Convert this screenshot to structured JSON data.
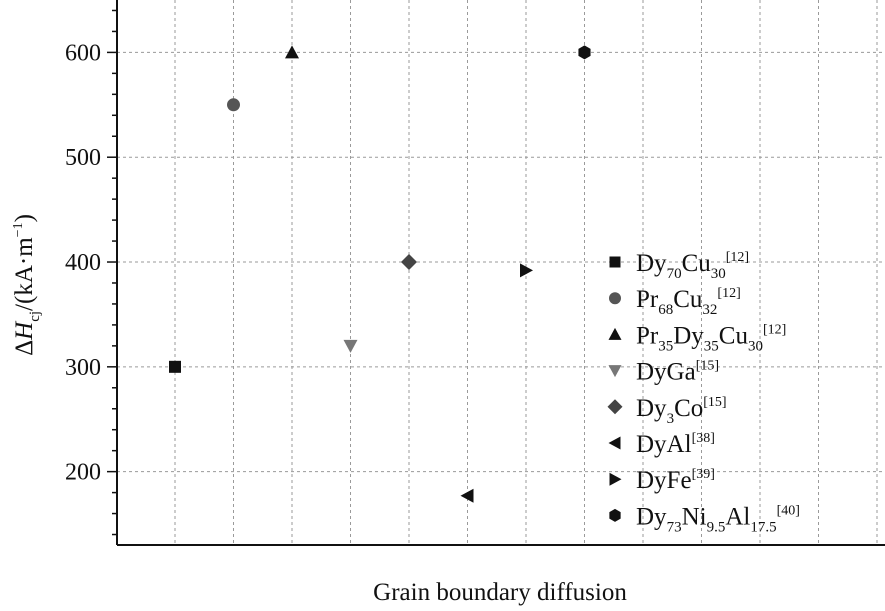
{
  "chart_data": {
    "type": "scatter",
    "title": "",
    "xlabel": "Grain boundary diffusion",
    "ylabel": {
      "prefix": "ΔH",
      "sub": "cj",
      "mid": "/(kA·m",
      "sup": "−1",
      "suffix": ")"
    },
    "ylim": [
      130,
      650
    ],
    "yticks": [
      {
        "value": 200,
        "label": "200"
      },
      {
        "value": 300,
        "label": "300"
      },
      {
        "value": 400,
        "label": "400"
      },
      {
        "value": 500,
        "label": "500"
      },
      {
        "value": 600,
        "label": "600"
      }
    ],
    "x_grid_count": 13,
    "grid": true,
    "legend_position": "right",
    "series": [
      {
        "name": "Dy70Cu30[12]",
        "label_parts": [
          {
            "t": "Dy"
          },
          {
            "t": "70",
            "sub": true
          },
          {
            "t": "Cu"
          },
          {
            "t": "30",
            "sub": true
          },
          {
            "t": "[12]",
            "sup": true
          }
        ],
        "marker": "square",
        "color": "#111111",
        "x": 1,
        "y": 300
      },
      {
        "name": "Pr68Cu32[12]",
        "label_parts": [
          {
            "t": "Pr"
          },
          {
            "t": "68",
            "sub": true
          },
          {
            "t": "Cu"
          },
          {
            "t": "32",
            "sub": true
          },
          {
            "t": "[12]",
            "sup": true
          }
        ],
        "marker": "circle",
        "color": "#555555",
        "x": 2,
        "y": 550
      },
      {
        "name": "Pr35Dy35Cu30[12]",
        "label_parts": [
          {
            "t": "Pr"
          },
          {
            "t": "35",
            "sub": true
          },
          {
            "t": "Dy"
          },
          {
            "t": "35",
            "sub": true
          },
          {
            "t": "Cu"
          },
          {
            "t": "30",
            "sub": true
          },
          {
            "t": "[12]",
            "sup": true
          }
        ],
        "marker": "triangle-up",
        "color": "#111111",
        "x": 3,
        "y": 600
      },
      {
        "name": "DyGa[15]",
        "label_parts": [
          {
            "t": "DyGa"
          },
          {
            "t": "[15]",
            "sup": true
          }
        ],
        "marker": "triangle-down",
        "color": "#777777",
        "x": 4,
        "y": 320
      },
      {
        "name": "Dy3Co[15]",
        "label_parts": [
          {
            "t": "Dy"
          },
          {
            "t": "3",
            "sub": true
          },
          {
            "t": "Co"
          },
          {
            "t": "[15]",
            "sup": true
          }
        ],
        "marker": "diamond",
        "color": "#444444",
        "x": 5,
        "y": 400
      },
      {
        "name": "DyAl[38]",
        "label_parts": [
          {
            "t": "DyAl"
          },
          {
            "t": "[38]",
            "sup": true
          }
        ],
        "marker": "triangle-left",
        "color": "#111111",
        "x": 6,
        "y": 177
      },
      {
        "name": "DyFe[39]",
        "label_parts": [
          {
            "t": "DyFe"
          },
          {
            "t": "[39]",
            "sup": true
          }
        ],
        "marker": "triangle-right",
        "color": "#111111",
        "x": 7,
        "y": 392
      },
      {
        "name": "Dy73Ni9.5Al17.5[40]",
        "label_parts": [
          {
            "t": "Dy"
          },
          {
            "t": "73",
            "sub": true
          },
          {
            "t": "Ni"
          },
          {
            "t": "9.5",
            "sub": true
          },
          {
            "t": "Al"
          },
          {
            "t": "17.5",
            "sub": true
          },
          {
            "t": "[40]",
            "sup": true
          }
        ],
        "marker": "hexagon",
        "color": "#111111",
        "x": 8,
        "y": 600
      }
    ]
  }
}
